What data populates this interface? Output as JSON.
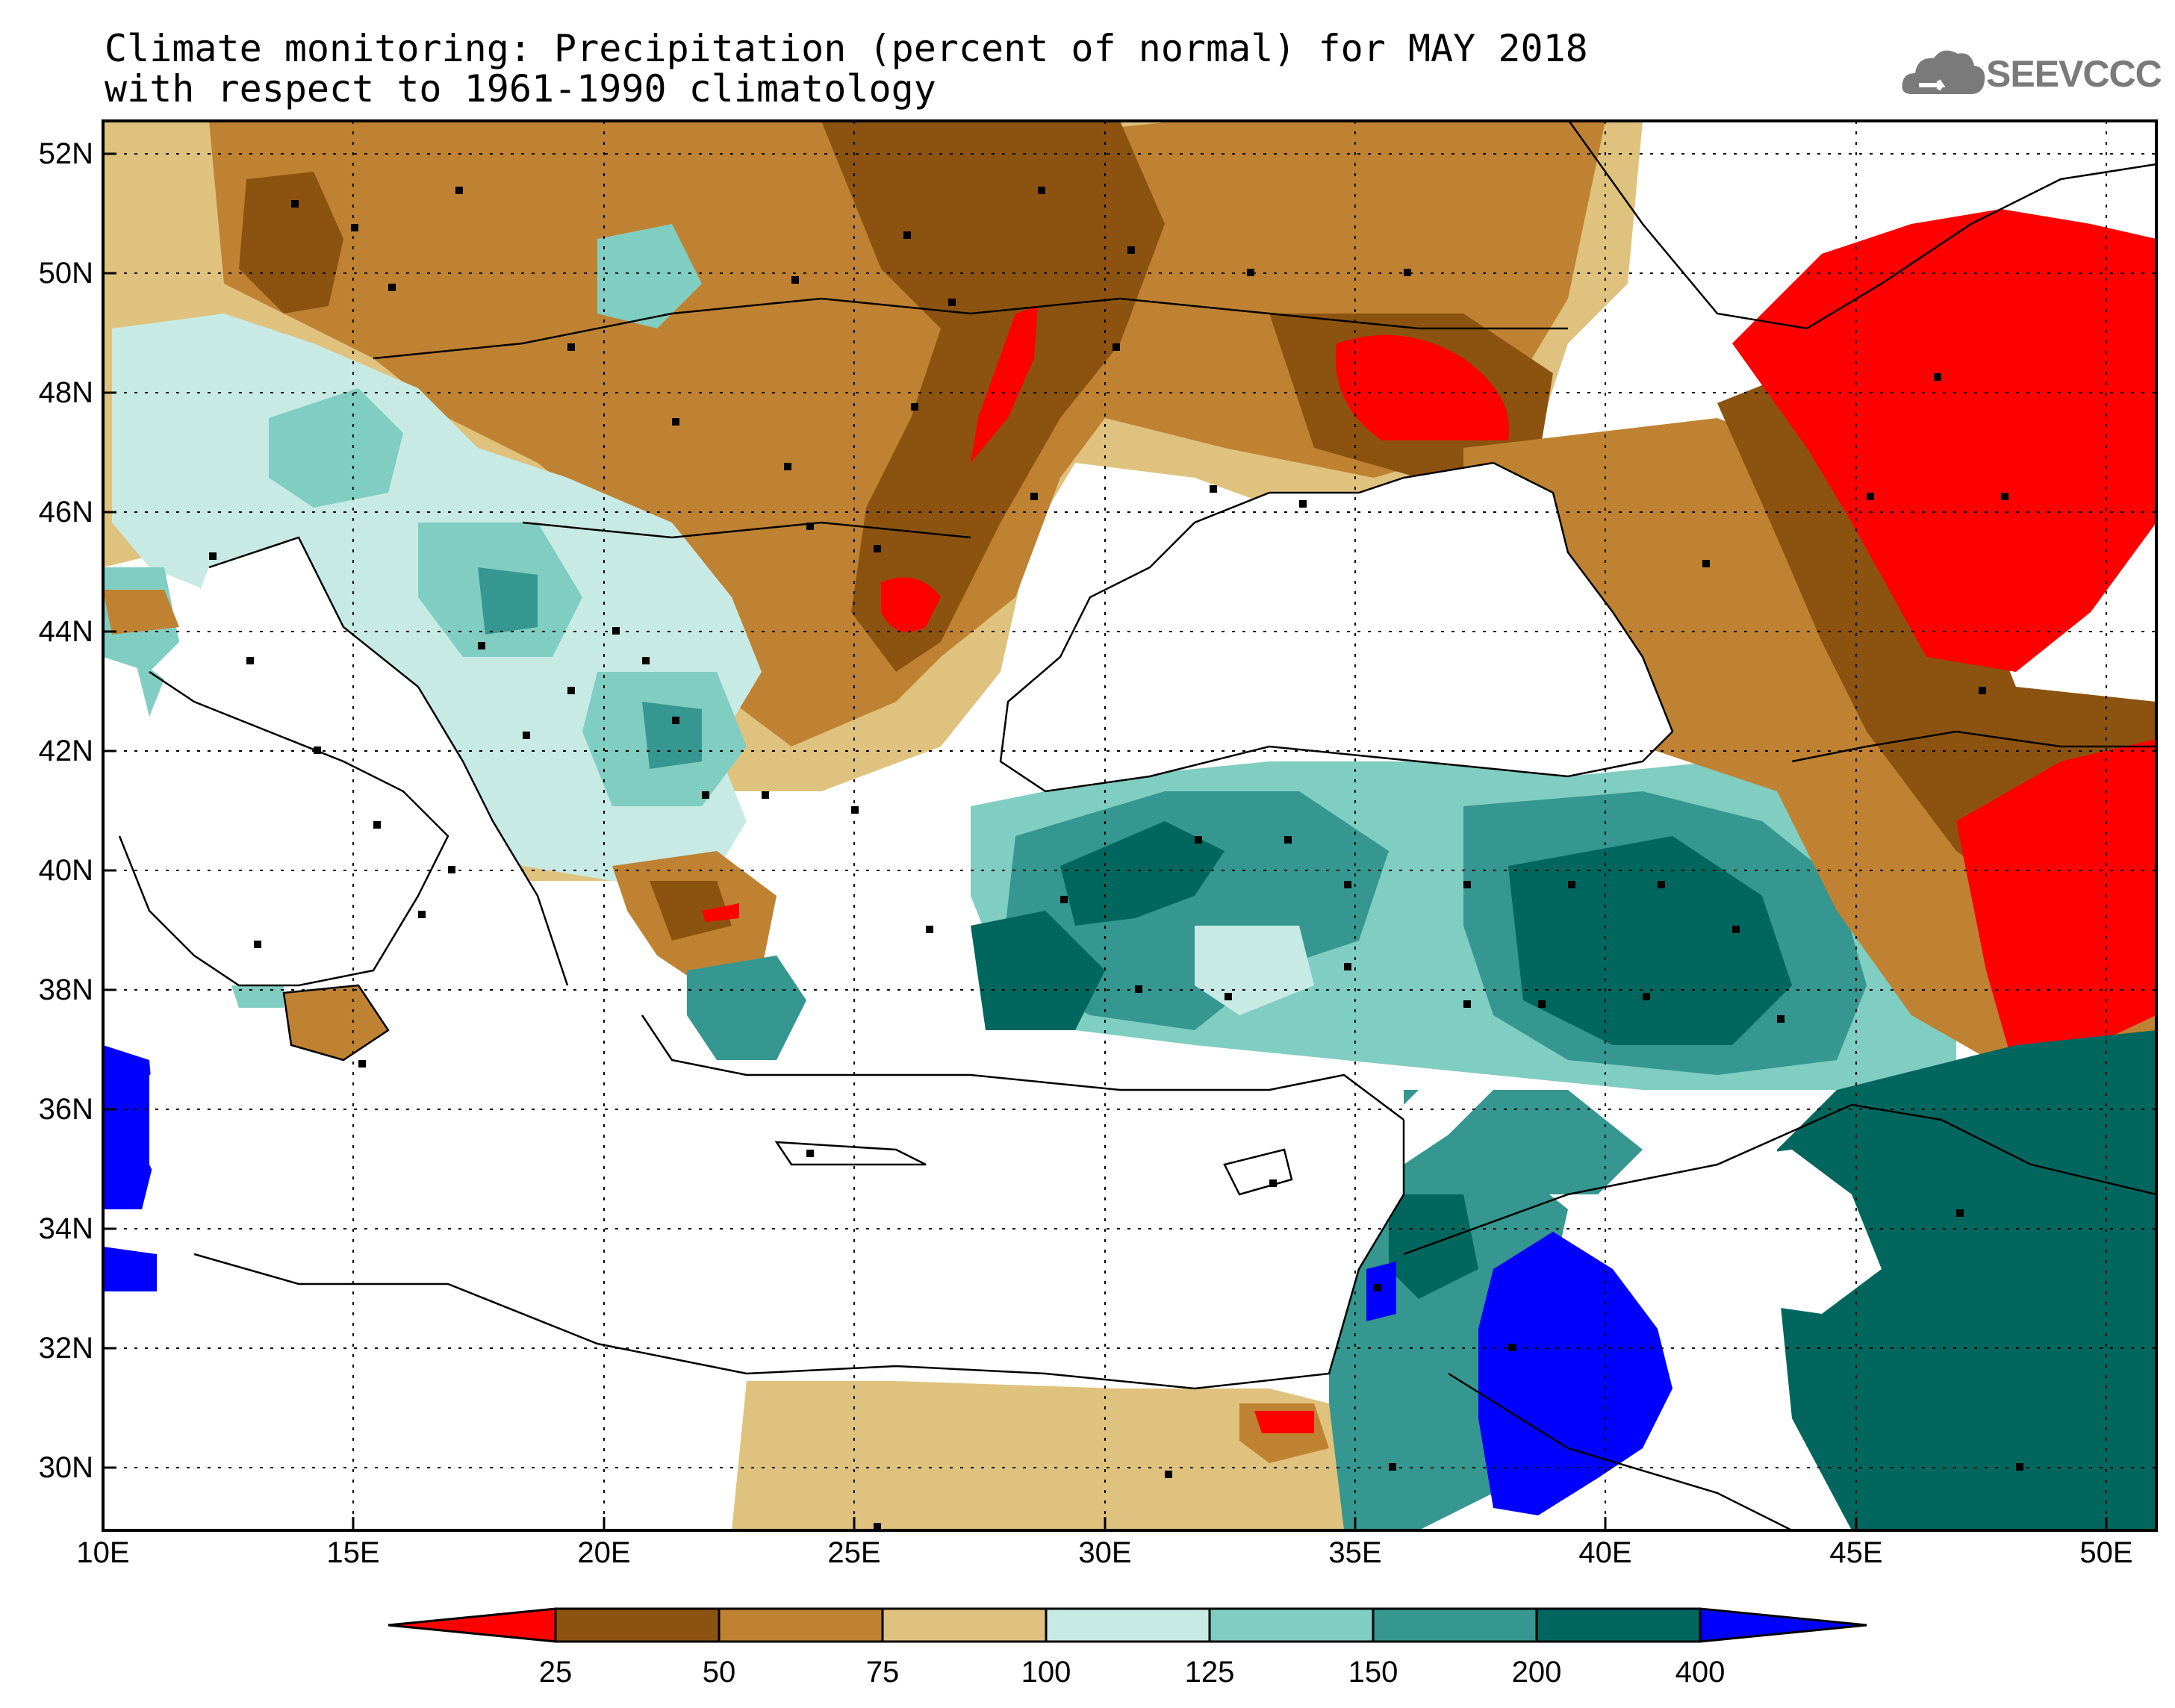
{
  "title": {
    "line1": "Climate monitoring: Precipitation (percent of normal) for MAY 2018",
    "line2": "with respect to 1961-1990 climatology"
  },
  "logo": {
    "text": "SEEVCCC",
    "icon": "cloud-icon",
    "color": "#7a7a7a"
  },
  "map": {
    "lat_labels": [
      "52N",
      "50N",
      "48N",
      "46N",
      "44N",
      "42N",
      "40N",
      "38N",
      "36N",
      "34N",
      "32N",
      "30N"
    ],
    "lon_labels": [
      "10E",
      "15E",
      "20E",
      "25E",
      "30E",
      "35E",
      "40E",
      "45E",
      "50E"
    ],
    "lat_range": [
      29,
      52.6
    ],
    "lon_range": [
      10,
      51
    ]
  },
  "colorbar": {
    "labels": [
      "25",
      "50",
      "75",
      "100",
      "125",
      "150",
      "200",
      "400"
    ],
    "colors": [
      "#ff0000",
      "#8c5310",
      "#bf8232",
      "#dfc27d",
      "#c7eae5",
      "#80cdc1",
      "#35978f",
      "#01665e",
      "#0000ff"
    ]
  }
}
